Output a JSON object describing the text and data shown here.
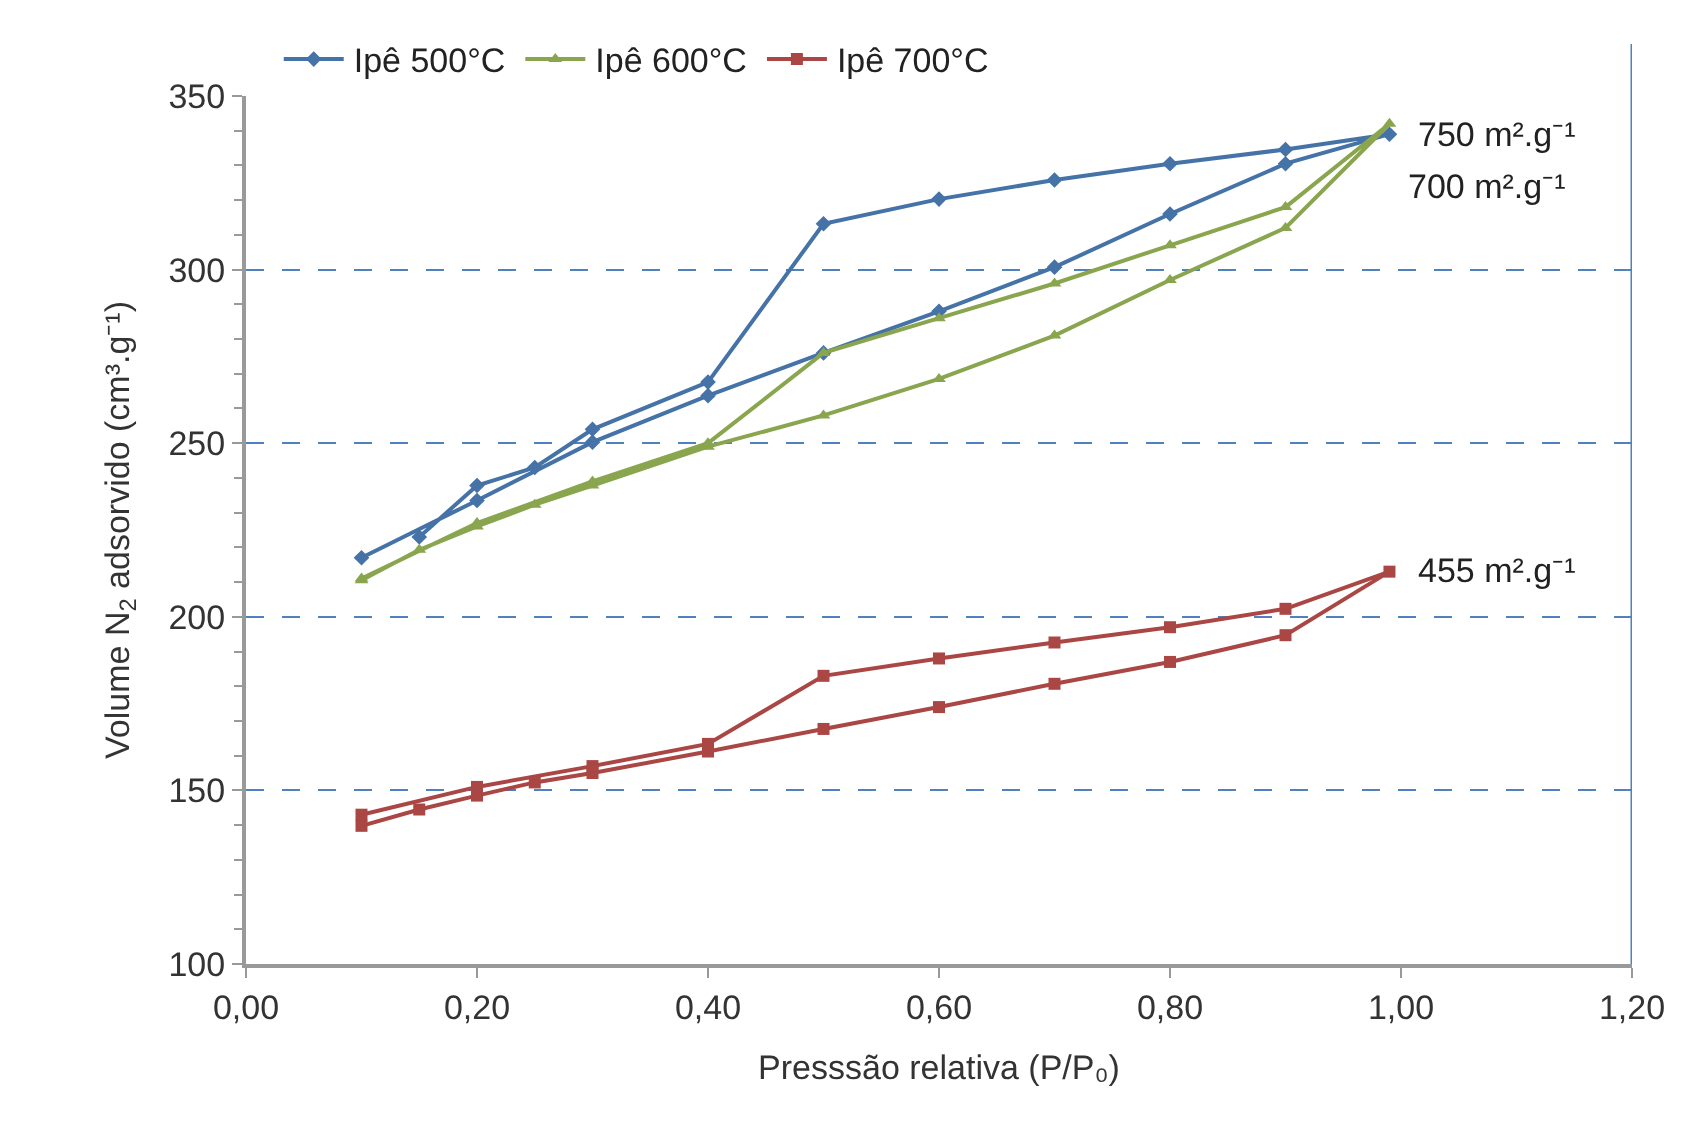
{
  "chart_data": {
    "type": "line",
    "xlabel": "Presssão relativa (P/P₀)",
    "ylabel": "Volume N$_{2}$ adsorvido (cm³.g⁻¹)",
    "xlim": [
      0,
      1.2
    ],
    "xticks": [
      {
        "value": 0,
        "label": "0,00"
      },
      {
        "value": 0.2,
        "label": "0,20"
      },
      {
        "value": 0.4,
        "label": "0,40"
      },
      {
        "value": 0.6,
        "label": "0,60"
      },
      {
        "value": 0.8,
        "label": "0,80"
      },
      {
        "value": 1.0,
        "label": "1,00"
      },
      {
        "value": 1.2,
        "label": "1,20"
      }
    ],
    "ylim": [
      100,
      350
    ],
    "yticks": [
      100,
      150,
      200,
      250,
      300,
      350
    ],
    "grid": "y",
    "legend": "top",
    "series": [
      {
        "name": "Ipê 500°C",
        "color": "#4572a7",
        "marker": "diamond",
        "x": [
          0.1,
          0.2,
          0.3,
          0.4,
          0.5,
          0.6,
          0.7,
          0.8,
          0.9,
          0.99,
          0.9,
          0.8,
          0.7,
          0.6,
          0.5,
          0.4,
          0.3,
          0.25,
          0.2,
          0.15
        ],
        "values": [
          217,
          233.5,
          250.3,
          263.7,
          276,
          288,
          300.7,
          316,
          330.5,
          339,
          334.6,
          330.5,
          325.8,
          320.3,
          313.2,
          267.6,
          254,
          243,
          237.8,
          223
        ]
      },
      {
        "name": "Ipê 600°C",
        "color": "#89a54e",
        "marker": "triangle",
        "x": [
          0.1,
          0.15,
          0.2,
          0.25,
          0.3,
          0.4,
          0.5,
          0.6,
          0.7,
          0.8,
          0.9,
          0.99,
          0.9,
          0.8,
          0.7,
          0.6,
          0.5,
          0.4,
          0.3,
          0.2,
          0.1
        ],
        "values": [
          210.5,
          219.3,
          226,
          232.3,
          237.8,
          249,
          258,
          268.5,
          281,
          297,
          312,
          342,
          318,
          307,
          296,
          286,
          276,
          250,
          239,
          227,
          211
        ]
      },
      {
        "name": "Ipê 700°C",
        "color": "#aa4643",
        "marker": "square",
        "x": [
          0.1,
          0.15,
          0.2,
          0.25,
          0.3,
          0.4,
          0.5,
          0.6,
          0.7,
          0.8,
          0.9,
          0.99,
          0.9,
          0.8,
          0.7,
          0.6,
          0.5,
          0.4,
          0.3,
          0.2,
          0.1
        ],
        "values": [
          139.8,
          144.5,
          148.5,
          152.3,
          155,
          161.2,
          167.7,
          174,
          180.7,
          187,
          194.7,
          213,
          202.3,
          197,
          192.6,
          188,
          183,
          163.4,
          157,
          151,
          143
        ]
      }
    ],
    "annotations": [
      {
        "text": "750 m².g⁻¹",
        "x": 0.99,
        "y": 339
      },
      "700 m².g⁻¹",
      {
        "text": "455 m².g⁻¹",
        "x": 0.99,
        "y": 213
      }
    ]
  }
}
